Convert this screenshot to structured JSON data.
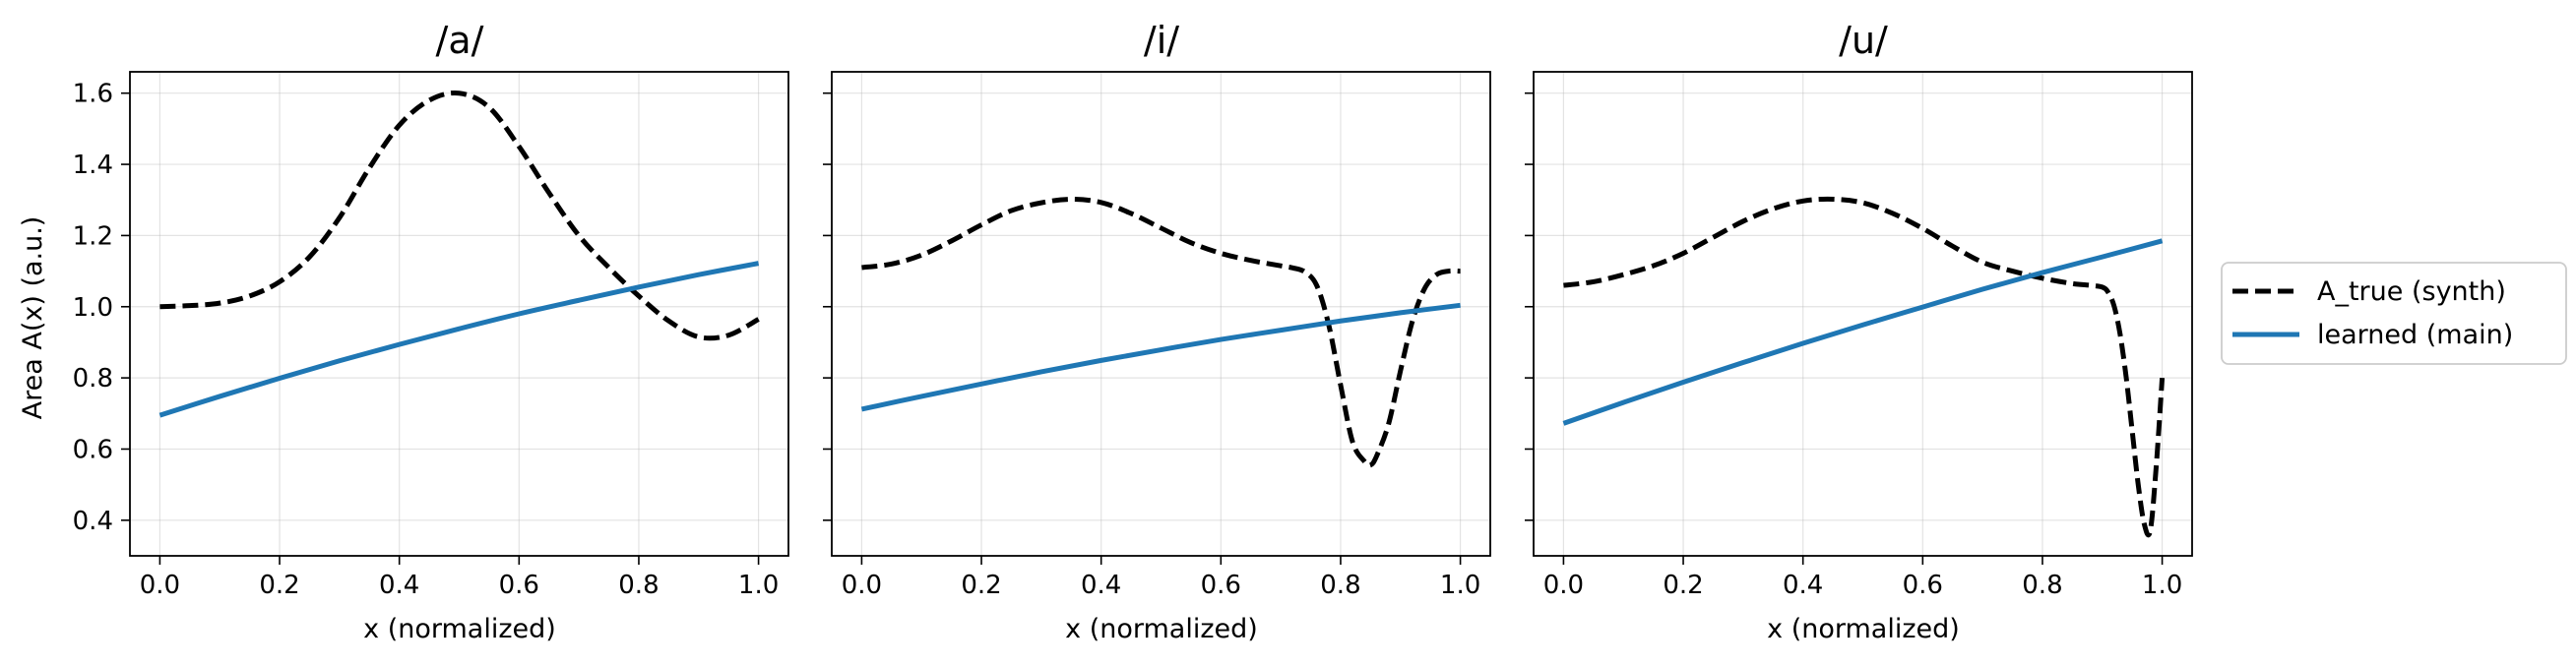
{
  "chart_data": {
    "type": "line",
    "ylabel": "Area A(x) (a.u.)",
    "ylim": [
      0.3,
      1.66
    ],
    "xlim": [
      -0.05,
      1.05
    ],
    "xticks": [
      0.0,
      0.2,
      0.4,
      0.6,
      0.8,
      1.0
    ],
    "xtick_labels": [
      "0.0",
      "0.2",
      "0.4",
      "0.6",
      "0.8",
      "1.0"
    ],
    "yticks": [
      0.4,
      0.6,
      0.8,
      1.0,
      1.2,
      1.4,
      1.6
    ],
    "ytick_labels": [
      "0.4",
      "0.6",
      "0.8",
      "1.0",
      "1.2",
      "1.4",
      "1.6"
    ],
    "grid": true,
    "legend": {
      "placement": "right-outside",
      "entries": [
        {
          "label": "A_true (synth)",
          "style": "dashed",
          "color": "#000000"
        },
        {
          "label": "learned (main)",
          "style": "solid",
          "color": "#1f77b4"
        }
      ]
    },
    "panels": [
      {
        "title": "/a/",
        "xlabel": "x (normalized)",
        "series": [
          {
            "name": "A_true (synth)",
            "x": [
              0.0,
              0.05,
              0.1,
              0.15,
              0.2,
              0.25,
              0.3,
              0.35,
              0.4,
              0.45,
              0.5,
              0.55,
              0.6,
              0.65,
              0.7,
              0.75,
              0.8,
              0.85,
              0.9,
              0.95,
              1.0
            ],
            "y": [
              1.0,
              1.003,
              1.01,
              1.03,
              1.07,
              1.14,
              1.25,
              1.39,
              1.51,
              1.58,
              1.6,
              1.56,
              1.45,
              1.32,
              1.2,
              1.11,
              1.03,
              0.96,
              0.915,
              0.92,
              0.965
            ]
          },
          {
            "name": "learned (main)",
            "x": [
              0.0,
              0.1,
              0.2,
              0.3,
              0.4,
              0.5,
              0.6,
              0.7,
              0.8,
              0.9,
              1.0
            ],
            "y": [
              0.695,
              0.748,
              0.799,
              0.848,
              0.894,
              0.938,
              0.98,
              1.018,
              1.055,
              1.09,
              1.122
            ]
          }
        ]
      },
      {
        "title": "/i/",
        "xlabel": "x (normalized)",
        "series": [
          {
            "name": "A_true (synth)",
            "x": [
              0.0,
              0.05,
              0.1,
              0.15,
              0.2,
              0.25,
              0.3,
              0.35,
              0.4,
              0.45,
              0.5,
              0.55,
              0.6,
              0.65,
              0.7,
              0.72,
              0.74,
              0.76,
              0.78,
              0.8,
              0.82,
              0.84,
              0.85,
              0.86,
              0.88,
              0.9,
              0.92,
              0.94,
              0.96,
              0.98,
              1.0
            ],
            "y": [
              1.11,
              1.12,
              1.145,
              1.185,
              1.23,
              1.27,
              1.292,
              1.302,
              1.293,
              1.262,
              1.221,
              1.18,
              1.15,
              1.13,
              1.115,
              1.109,
              1.098,
              1.06,
              0.95,
              0.78,
              0.62,
              0.565,
              0.555,
              0.58,
              0.67,
              0.82,
              0.96,
              1.05,
              1.09,
              1.1,
              1.1
            ]
          },
          {
            "name": "learned (main)",
            "x": [
              0.0,
              0.1,
              0.2,
              0.3,
              0.4,
              0.5,
              0.6,
              0.7,
              0.8,
              0.9,
              1.0
            ],
            "y": [
              0.712,
              0.748,
              0.783,
              0.817,
              0.849,
              0.879,
              0.908,
              0.934,
              0.96,
              0.983,
              1.004
            ]
          }
        ]
      },
      {
        "title": "/u/",
        "xlabel": "x (normalized)",
        "series": [
          {
            "name": "A_true (synth)",
            "x": [
              0.0,
              0.05,
              0.1,
              0.15,
              0.2,
              0.25,
              0.3,
              0.35,
              0.4,
              0.45,
              0.5,
              0.55,
              0.6,
              0.65,
              0.7,
              0.75,
              0.8,
              0.85,
              0.88,
              0.9,
              0.91,
              0.92,
              0.93,
              0.94,
              0.95,
              0.96,
              0.97,
              0.98,
              0.99,
              1.0
            ],
            "y": [
              1.06,
              1.07,
              1.09,
              1.115,
              1.15,
              1.195,
              1.24,
              1.275,
              1.297,
              1.302,
              1.292,
              1.262,
              1.22,
              1.17,
              1.125,
              1.1,
              1.08,
              1.065,
              1.06,
              1.055,
              1.04,
              1.0,
              0.92,
              0.8,
              0.65,
              0.5,
              0.39,
              0.37,
              0.55,
              0.8
            ]
          },
          {
            "name": "learned (main)",
            "x": [
              0.0,
              0.1,
              0.2,
              0.3,
              0.4,
              0.5,
              0.6,
              0.7,
              0.8,
              0.9,
              1.0
            ],
            "y": [
              0.672,
              0.731,
              0.788,
              0.843,
              0.897,
              0.949,
              0.999,
              1.049,
              1.096,
              1.14,
              1.185
            ]
          }
        ]
      }
    ]
  }
}
